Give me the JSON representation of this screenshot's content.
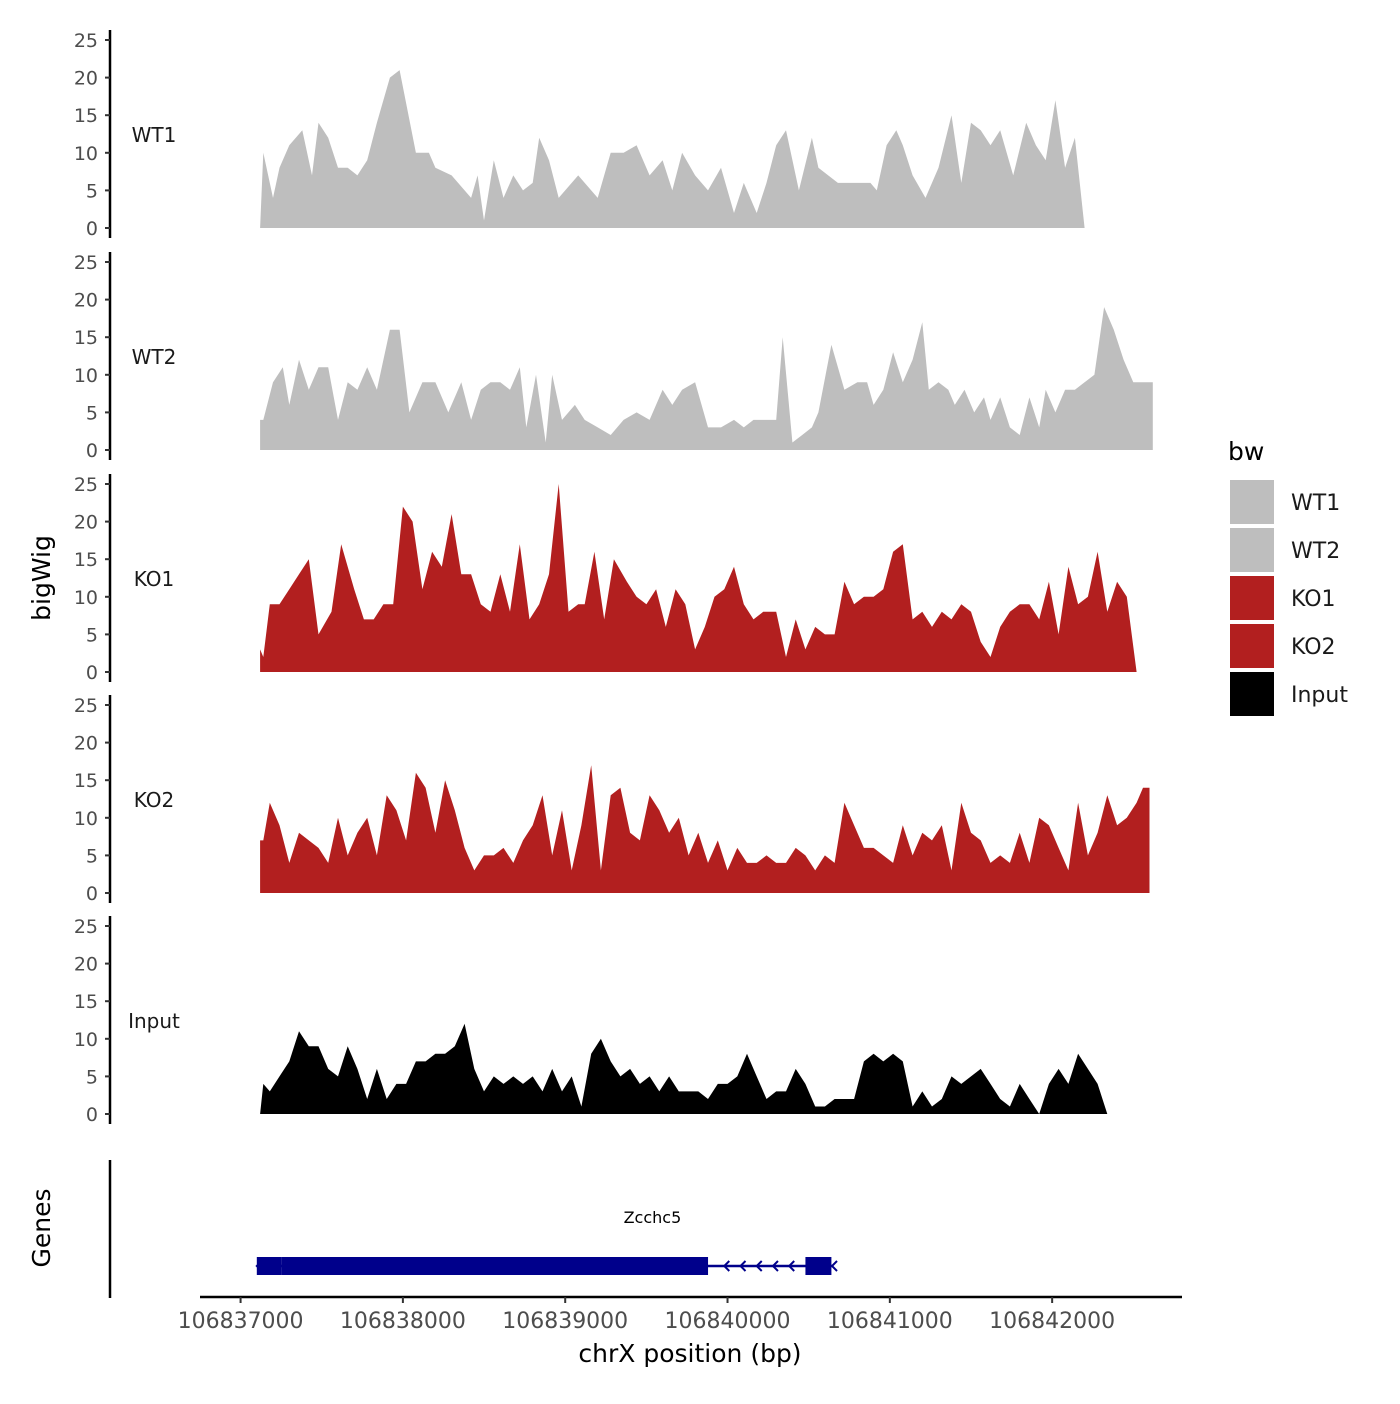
{
  "chart_data": {
    "type": "area",
    "chromosome": "chrX",
    "xlabel": "chrX position (bp)",
    "ylabel": "bigWig",
    "gene_panel_label": "Genes",
    "xlim": [
      106836750,
      106842800
    ],
    "x_ticks": [
      106837000,
      106838000,
      106839000,
      106840000,
      106841000,
      106842000
    ],
    "x_tick_labels": [
      "106837000",
      "106838000",
      "106839000",
      "106840000",
      "106841000",
      "106842000"
    ],
    "ylim": [
      0,
      25
    ],
    "y_ticks": [
      0,
      5,
      10,
      15,
      20,
      25
    ],
    "y_tick_labels": [
      "0",
      "5",
      "10",
      "15",
      "20",
      "25"
    ],
    "grid": false,
    "legend": {
      "title": "bw",
      "position": "right",
      "entries": [
        {
          "name": "WT1",
          "color": "#bebebe"
        },
        {
          "name": "WT2",
          "color": "#bebebe"
        },
        {
          "name": "KO1",
          "color": "#b21f1f"
        },
        {
          "name": "KO2",
          "color": "#b21f1f"
        },
        {
          "name": "Input",
          "color": "#000000"
        }
      ]
    },
    "series": [
      {
        "name": "WT1",
        "color": "#bebebe",
        "x": [
          106837120,
          106837140,
          106837200,
          106837240,
          106837300,
          106837380,
          106837440,
          106837480,
          106837540,
          106837600,
          106837660,
          106837720,
          106837780,
          106837840,
          106837920,
          106837980,
          106838080,
          106838160,
          106838200,
          106838300,
          106838380,
          106838420,
          106838460,
          106838500,
          106838560,
          106838620,
          106838680,
          106838740,
          106838800,
          106838840,
          106838900,
          106838960,
          106839040,
          106839080,
          106839120,
          106839200,
          106839280,
          106839360,
          106839440,
          106839520,
          106839600,
          106839660,
          106839720,
          106839800,
          106839880,
          106839960,
          106840040,
          106840100,
          106840180,
          106840240,
          106840300,
          106840360,
          106840440,
          106840520,
          106840560,
          106840620,
          106840680,
          106840740,
          106840820,
          106840880,
          106840920,
          106840980,
          106841040,
          106841080,
          106841140,
          106841220,
          106841300,
          106841380,
          106841440,
          106841500,
          106841560,
          106841620,
          106841680,
          106841760,
          106841840,
          106841900,
          106841960,
          106842020,
          106842080,
          106842140,
          106842200,
          106842240,
          106842300,
          106842340,
          106842380,
          106842420,
          106842460,
          106842520,
          106842560,
          106842620
        ],
        "values": [
          0,
          10,
          4,
          8,
          11,
          13,
          7,
          14,
          12,
          8,
          8,
          7,
          9,
          14,
          20,
          21,
          10,
          10,
          8,
          7,
          5,
          4,
          7,
          1,
          9,
          4,
          7,
          5,
          6,
          12,
          9,
          4,
          6,
          7,
          6,
          4,
          10,
          10,
          11,
          7,
          9,
          5,
          10,
          7,
          5,
          8,
          2,
          6,
          2,
          6,
          11,
          13,
          5,
          12,
          8,
          7,
          6,
          6,
          6,
          6,
          5,
          11,
          13,
          11,
          7,
          4,
          8,
          15,
          6,
          14,
          13,
          11,
          13,
          7,
          14,
          11,
          9,
          17,
          8,
          12,
          0,
          0,
          0,
          0,
          0,
          0,
          0,
          0,
          0,
          0
        ]
      },
      {
        "name": "WT2",
        "color": "#bebebe",
        "x": [
          106837120,
          106837140,
          106837200,
          106837260,
          106837300,
          106837360,
          106837420,
          106837480,
          106837540,
          106837600,
          106837660,
          106837720,
          106837780,
          106837840,
          106837920,
          106837980,
          106838040,
          106838120,
          106838200,
          106838280,
          106838360,
          106838420,
          106838480,
          106838540,
          106838600,
          106838660,
          106838720,
          106838760,
          106838820,
          106838880,
          106838920,
          106838980,
          106839060,
          106839120,
          106839200,
          106839280,
          106839360,
          106839440,
          106839520,
          106839600,
          106839660,
          106839720,
          106839800,
          106839880,
          106839960,
          106840040,
          106840100,
          106840160,
          106840220,
          106840300,
          106840340,
          106840400,
          106840460,
          106840520,
          106840560,
          106840640,
          106840720,
          106840800,
          106840860,
          106840900,
          106840960,
          106841020,
          106841080,
          106841140,
          106841200,
          106841240,
          106841300,
          106841360,
          106841400,
          106841460,
          106841520,
          106841580,
          106841620,
          106841680,
          106841740,
          106841800,
          106841860,
          106841920,
          106841960,
          106842020,
          106842080,
          106842140,
          106842200,
          106842260,
          106842320,
          106842380,
          106842440,
          106842500,
          106842560,
          106842620
        ],
        "values": [
          4,
          4,
          9,
          11,
          6,
          12,
          8,
          11,
          11,
          4,
          9,
          8,
          11,
          8,
          16,
          16,
          5,
          9,
          9,
          5,
          9,
          4,
          8,
          9,
          9,
          8,
          11,
          3,
          10,
          1,
          10,
          4,
          6,
          4,
          3,
          2,
          4,
          5,
          4,
          8,
          6,
          8,
          9,
          3,
          3,
          4,
          3,
          4,
          4,
          4,
          15,
          1,
          2,
          3,
          5,
          14,
          8,
          9,
          9,
          6,
          8,
          13,
          9,
          12,
          17,
          8,
          9,
          8,
          6,
          8,
          5,
          7,
          4,
          7,
          3,
          2,
          7,
          3,
          8,
          5,
          8,
          8,
          9,
          10,
          19,
          16,
          12,
          9,
          9,
          9
        ]
      },
      {
        "name": "KO1",
        "color": "#b21f1f",
        "x": [
          106837120,
          106837140,
          106837180,
          106837240,
          106837300,
          106837360,
          106837420,
          106837480,
          106837560,
          106837620,
          106837700,
          106837760,
          106837820,
          106837880,
          106837940,
          106838000,
          106838060,
          106838120,
          106838180,
          106838240,
          106838300,
          106838360,
          106838420,
          106838480,
          106838540,
          106838600,
          106838660,
          106838720,
          106838780,
          106838840,
          106838900,
          106838960,
          106839020,
          106839080,
          106839120,
          106839180,
          106839240,
          106839300,
          106839380,
          106839440,
          106839500,
          106839560,
          106839620,
          106839680,
          106839740,
          106839800,
          106839860,
          106839920,
          106839980,
          106840040,
          106840100,
          106840160,
          106840220,
          106840300,
          106840360,
          106840420,
          106840480,
          106840540,
          106840600,
          106840660,
          106840720,
          106840780,
          106840840,
          106840900,
          106840960,
          106841020,
          106841080,
          106841140,
          106841200,
          106841260,
          106841320,
          106841380,
          106841440,
          106841500,
          106841560,
          106841620,
          106841680,
          106841740,
          106841800,
          106841860,
          106841920,
          106841980,
          106842040,
          106842100,
          106842160,
          106842220,
          106842280,
          106842340,
          106842400,
          106842460,
          106842520,
          106842560,
          106842620
        ],
        "values": [
          3,
          2,
          9,
          9,
          11,
          13,
          15,
          5,
          8,
          17,
          11,
          7,
          7,
          9,
          9,
          22,
          20,
          11,
          16,
          14,
          21,
          13,
          13,
          9,
          8,
          13,
          8,
          17,
          7,
          9,
          13,
          25,
          8,
          9,
          9,
          16,
          7,
          15,
          12,
          10,
          9,
          11,
          6,
          11,
          9,
          3,
          6,
          10,
          11,
          14,
          9,
          7,
          8,
          8,
          2,
          7,
          3,
          6,
          5,
          5,
          12,
          9,
          10,
          10,
          11,
          16,
          17,
          7,
          8,
          6,
          8,
          7,
          9,
          8,
          4,
          2,
          6,
          8,
          9,
          9,
          7,
          12,
          5,
          14,
          9,
          10,
          16,
          8,
          12,
          10,
          0,
          0,
          0
        ]
      },
      {
        "name": "KO2",
        "color": "#b21f1f",
        "x": [
          106837120,
          106837140,
          106837180,
          106837240,
          106837300,
          106837360,
          106837420,
          106837480,
          106837540,
          106837600,
          106837660,
          106837720,
          106837780,
          106837840,
          106837900,
          106837960,
          106838020,
          106838080,
          106838140,
          106838200,
          106838260,
          106838320,
          106838380,
          106838440,
          106838500,
          106838560,
          106838620,
          106838680,
          106838740,
          106838800,
          106838860,
          106838920,
          106838980,
          106839040,
          106839100,
          106839160,
          106839220,
          106839280,
          106839340,
          106839400,
          106839460,
          106839520,
          106839580,
          106839640,
          106839700,
          106839760,
          106839820,
          106839880,
          106839940,
          106840000,
          106840060,
          106840120,
          106840180,
          106840240,
          106840300,
          106840360,
          106840420,
          106840480,
          106840540,
          106840600,
          106840660,
          106840720,
          106840780,
          106840840,
          106840900,
          106840960,
          106841020,
          106841080,
          106841140,
          106841200,
          106841260,
          106841320,
          106841380,
          106841440,
          106841500,
          106841560,
          106841620,
          106841680,
          106841740,
          106841800,
          106841860,
          106841920,
          106841980,
          106842040,
          106842100,
          106842160,
          106842220,
          106842280,
          106842340,
          106842400,
          106842460,
          106842520,
          106842560,
          106842600
        ],
        "values": [
          7,
          7,
          12,
          9,
          4,
          8,
          7,
          6,
          4,
          10,
          5,
          8,
          10,
          5,
          13,
          11,
          7,
          16,
          14,
          8,
          15,
          11,
          6,
          3,
          5,
          5,
          6,
          4,
          7,
          9,
          13,
          5,
          11,
          3,
          9,
          17,
          3,
          13,
          14,
          8,
          7,
          13,
          11,
          8,
          10,
          5,
          8,
          4,
          7,
          3,
          6,
          4,
          4,
          5,
          4,
          4,
          6,
          5,
          3,
          5,
          4,
          12,
          9,
          6,
          6,
          5,
          4,
          9,
          5,
          8,
          7,
          9,
          3,
          12,
          8,
          7,
          4,
          5,
          4,
          8,
          4,
          10,
          9,
          6,
          3,
          12,
          5,
          8,
          13,
          9,
          10,
          12,
          14,
          14
        ]
      },
      {
        "name": "Input",
        "color": "#000000",
        "x": [
          106837120,
          106837140,
          106837180,
          106837240,
          106837300,
          106837360,
          106837420,
          106837480,
          106837540,
          106837600,
          106837660,
          106837720,
          106837780,
          106837840,
          106837900,
          106837960,
          106838020,
          106838080,
          106838140,
          106838200,
          106838260,
          106838320,
          106838380,
          106838440,
          106838500,
          106838560,
          106838620,
          106838680,
          106838740,
          106838800,
          106838860,
          106838920,
          106838980,
          106839040,
          106839100,
          106839160,
          106839220,
          106839280,
          106839340,
          106839400,
          106839460,
          106839520,
          106839580,
          106839640,
          106839700,
          106839760,
          106839820,
          106839880,
          106839940,
          106840000,
          106840060,
          106840120,
          106840180,
          106840240,
          106840300,
          106840360,
          106840420,
          106840480,
          106840540,
          106840600,
          106840660,
          106840720,
          106840780,
          106840840,
          106840900,
          106840960,
          106841020,
          106841080,
          106841140,
          106841200,
          106841260,
          106841320,
          106841380,
          106841440,
          106841500,
          106841560,
          106841620,
          106841680,
          106841740,
          106841800,
          106841860,
          106841920,
          106841980,
          106842040,
          106842100,
          106842160,
          106842220,
          106842280,
          106842340,
          106842400,
          106842460,
          106842520,
          106842560,
          106842600
        ],
        "values": [
          0,
          4,
          3,
          5,
          7,
          11,
          9,
          9,
          6,
          5,
          9,
          6,
          2,
          6,
          2,
          4,
          4,
          7,
          7,
          8,
          8,
          9,
          12,
          6,
          3,
          5,
          4,
          5,
          4,
          5,
          3,
          6,
          3,
          5,
          1,
          8,
          10,
          7,
          5,
          6,
          4,
          5,
          3,
          5,
          3,
          3,
          3,
          2,
          4,
          4,
          5,
          8,
          5,
          2,
          3,
          3,
          6,
          4,
          1,
          1,
          2,
          2,
          2,
          7,
          8,
          7,
          8,
          7,
          1,
          3,
          1,
          2,
          5,
          4,
          5,
          6,
          4,
          2,
          1,
          4,
          2,
          0,
          4,
          6,
          4,
          8,
          6,
          4,
          0,
          0,
          0,
          0,
          0,
          0
        ]
      }
    ],
    "genes": [
      {
        "name": "Zcchc5",
        "strand": "-",
        "start": 106837100,
        "end": 106840650,
        "exons": [
          [
            106837100,
            106837250
          ],
          [
            106837250,
            106839880
          ],
          [
            106840480,
            106840640
          ]
        ],
        "color": "#00008b"
      }
    ]
  }
}
